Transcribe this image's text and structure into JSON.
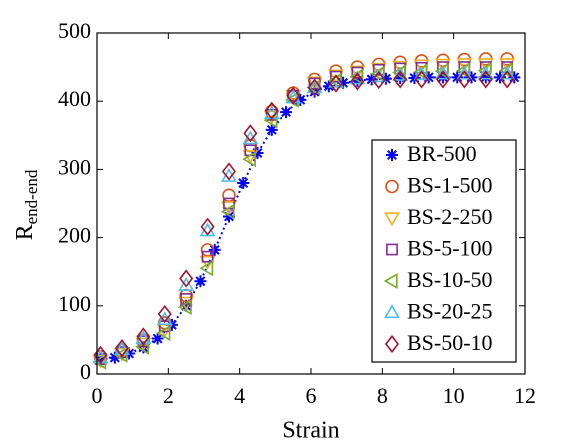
{
  "chart_data": {
    "type": "scatter",
    "x_label": "Strain",
    "y_label": {
      "main": "R",
      "sub": "end-end"
    },
    "xlim": [
      0,
      12
    ],
    "xticks": [
      0,
      2,
      4,
      6,
      8,
      10,
      12
    ],
    "ylim": [
      0,
      500
    ],
    "yticks": [
      0,
      100,
      200,
      300,
      400,
      500
    ],
    "legend": "right",
    "series": [
      {
        "name": "BR-500",
        "color": "#0000ff",
        "marker": "star",
        "line": "dotted",
        "x": [
          0.1,
          0.5,
          0.9,
          1.3,
          1.7,
          2.1,
          2.5,
          2.9,
          3.3,
          3.7,
          4.1,
          4.5,
          4.9,
          5.3,
          5.7,
          6.1,
          6.5,
          6.9,
          7.3,
          7.7,
          8.1,
          8.5,
          8.9,
          9.3,
          9.7,
          10.1,
          10.5,
          10.9,
          11.3,
          11.7
        ],
        "values": [
          21,
          24,
          30,
          39,
          52,
          72,
          100,
          136,
          182,
          231,
          280,
          324,
          358,
          384,
          402,
          414,
          422,
          427,
          430,
          432,
          433,
          434,
          434,
          435,
          435,
          435,
          435,
          435,
          435,
          435
        ]
      },
      {
        "name": "BS-1-500",
        "color": "#d95319",
        "marker": "circle",
        "x": [
          0.1,
          0.7,
          1.3,
          1.9,
          2.5,
          3.1,
          3.7,
          4.3,
          4.9,
          5.5,
          6.1,
          6.7,
          7.3,
          7.9,
          8.5,
          9.1,
          9.7,
          10.3,
          10.9,
          11.5
        ],
        "values": [
          25,
          35,
          50,
          75,
          115,
          182,
          262,
          335,
          385,
          412,
          432,
          444,
          450,
          454,
          457,
          459,
          460,
          461,
          462,
          462
        ]
      },
      {
        "name": "BS-2-250",
        "color": "#edb120",
        "marker": "triangle-down",
        "x": [
          0.1,
          0.7,
          1.3,
          1.9,
          2.5,
          3.1,
          3.7,
          4.3,
          4.9,
          5.5,
          6.1,
          6.7,
          7.3,
          7.9,
          8.5,
          9.1,
          9.7,
          10.3,
          10.9,
          11.5
        ],
        "values": [
          20,
          30,
          45,
          65,
          105,
          165,
          245,
          320,
          378,
          408,
          428,
          438,
          444,
          448,
          451,
          453,
          454,
          455,
          455,
          455
        ]
      },
      {
        "name": "BS-5-100",
        "color": "#7e2f8e",
        "marker": "square",
        "x": [
          0.1,
          0.7,
          1.3,
          1.9,
          2.5,
          3.1,
          3.7,
          4.3,
          4.9,
          5.5,
          6.1,
          6.7,
          7.3,
          7.9,
          8.5,
          9.1,
          9.7,
          10.3,
          10.9,
          11.5
        ],
        "values": [
          22,
          32,
          48,
          70,
          110,
          172,
          250,
          328,
          380,
          408,
          426,
          436,
          442,
          446,
          448,
          449,
          450,
          450,
          450,
          450
        ]
      },
      {
        "name": "BS-10-50",
        "color": "#77ac30",
        "marker": "triangle-left",
        "x": [
          0.1,
          0.7,
          1.3,
          1.9,
          2.5,
          3.1,
          3.7,
          4.3,
          4.9,
          5.5,
          6.1,
          6.7,
          7.3,
          7.9,
          8.5,
          9.1,
          9.7,
          10.3,
          10.9,
          11.5
        ],
        "values": [
          18,
          28,
          40,
          60,
          98,
          155,
          238,
          315,
          372,
          402,
          420,
          430,
          436,
          440,
          442,
          443,
          444,
          445,
          445,
          445
        ]
      },
      {
        "name": "BS-20-25",
        "color": "#4dbeee",
        "marker": "triangle-up",
        "x": [
          0.1,
          0.7,
          1.3,
          1.9,
          2.5,
          3.1,
          3.7,
          4.3,
          4.9,
          5.5,
          6.1,
          6.7,
          7.3,
          7.9,
          8.5,
          9.1,
          9.7,
          10.3,
          10.9,
          11.5
        ],
        "values": [
          24,
          36,
          52,
          80,
          130,
          210,
          290,
          345,
          382,
          405,
          420,
          428,
          433,
          436,
          438,
          439,
          440,
          440,
          440,
          440
        ]
      },
      {
        "name": "BS-50-10",
        "color": "#a2142f",
        "marker": "diamond",
        "x": [
          0.1,
          0.7,
          1.3,
          1.9,
          2.5,
          3.1,
          3.7,
          4.3,
          4.9,
          5.5,
          6.1,
          6.7,
          7.3,
          7.9,
          8.5,
          9.1,
          9.7,
          10.3,
          10.9,
          11.5
        ],
        "values": [
          28,
          38,
          55,
          88,
          140,
          216,
          297,
          353,
          386,
          408,
          420,
          426,
          429,
          431,
          432,
          432,
          432,
          432,
          432,
          432
        ]
      }
    ]
  }
}
